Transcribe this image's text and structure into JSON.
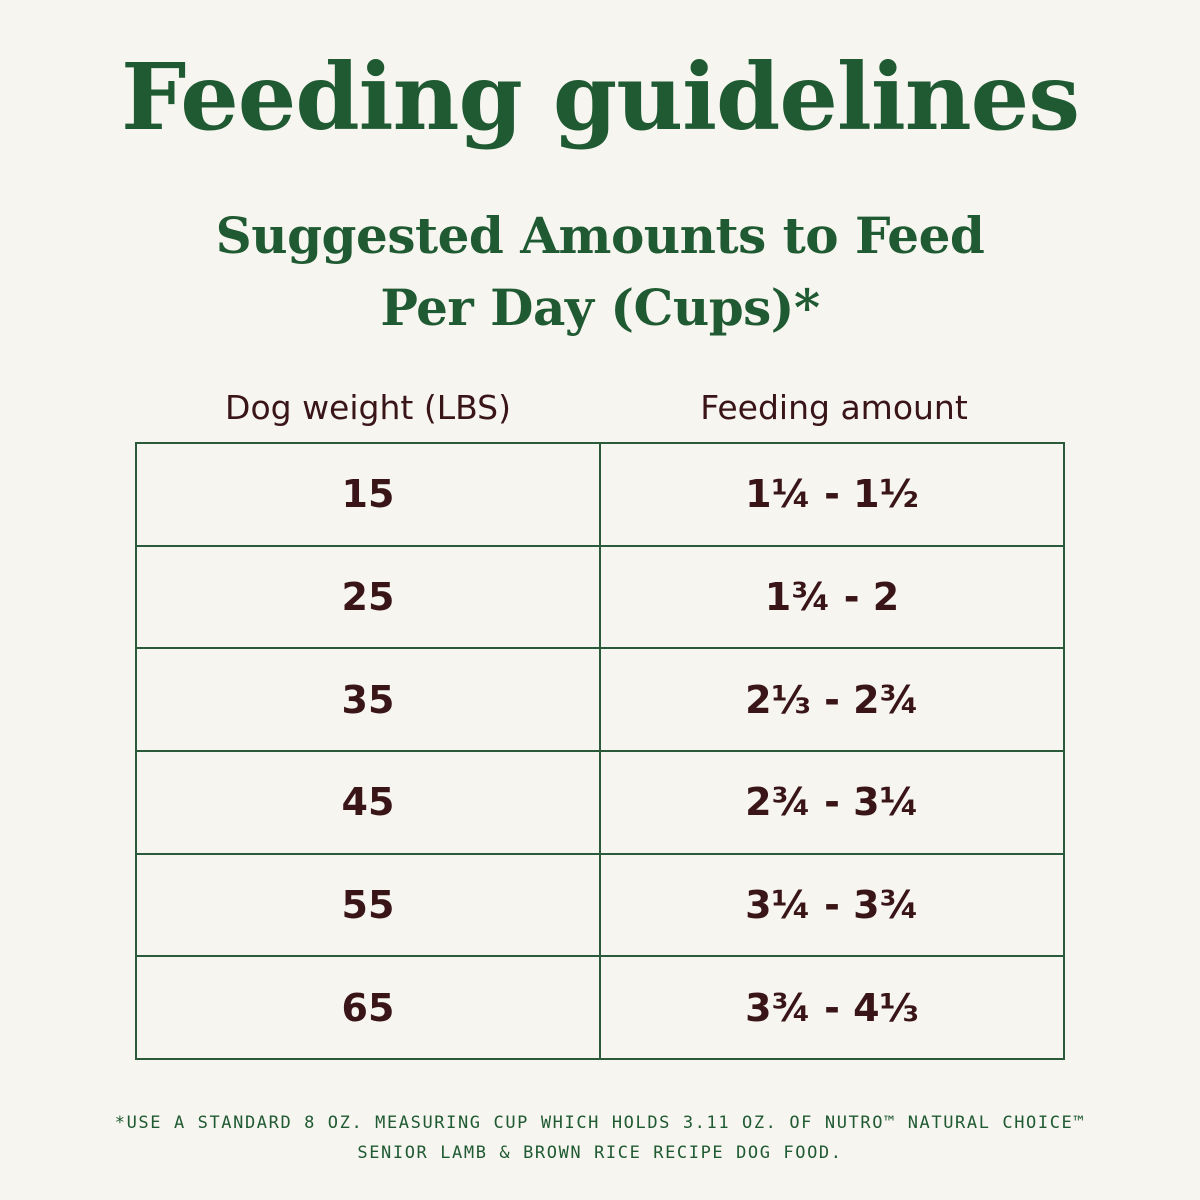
{
  "title": "Feeding guidelines",
  "subtitle": {
    "line1": "Suggested Amounts to Feed",
    "line2": "Per Day (Cups)*"
  },
  "table": {
    "headers": {
      "weight": "Dog weight (LBS)",
      "amount": "Feeding amount"
    },
    "rows": [
      {
        "weight": "15",
        "amount": "1¼ - 1½"
      },
      {
        "weight": "25",
        "amount": "1¾ - 2"
      },
      {
        "weight": "35",
        "amount": "2⅓ - 2¾"
      },
      {
        "weight": "45",
        "amount": "2¾ - 3¼"
      },
      {
        "weight": "55",
        "amount": "3¼ - 3¾"
      },
      {
        "weight": "65",
        "amount": "3¾ - 4⅓"
      }
    ]
  },
  "footnote": {
    "line1": "*USE A STANDARD 8 OZ. MEASURING CUP WHICH HOLDS 3.11 OZ. OF NUTRO™ NATURAL CHOICE™",
    "line2": "SENIOR LAMB & BROWN RICE RECIPE DOG FOOD."
  },
  "colors": {
    "background": "#f6f5f0",
    "heading_green": "#1f5a32",
    "text_maroon": "#3a1518",
    "border_green": "#2b5a3a"
  }
}
